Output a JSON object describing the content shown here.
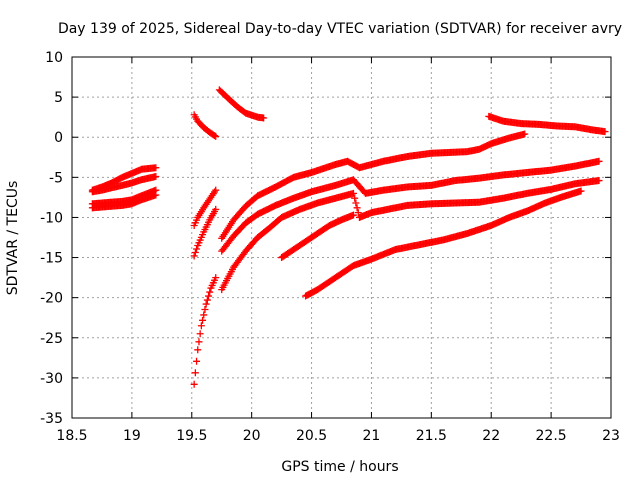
{
  "chart_data": {
    "type": "scatter",
    "title": "Day 139 of 2025, Sidereal Day-to-day VTEC variation (SDTVAR) for receiver avry",
    "xlabel": "GPS time / hours",
    "ylabel": "SDTVAR / TECUs",
    "xlim": [
      18.5,
      23.0
    ],
    "ylim": [
      -35,
      10
    ],
    "xticks": [
      18.5,
      19,
      19.5,
      20,
      20.5,
      21,
      21.5,
      22,
      22.5,
      23
    ],
    "yticks": [
      -35,
      -30,
      -25,
      -20,
      -15,
      -10,
      -5,
      0,
      5,
      10
    ],
    "xtick_labels": [
      "18.5",
      "19",
      "19.5",
      "20",
      "20.5",
      "21",
      "21.5",
      "22",
      "22.5",
      "23"
    ],
    "ytick_labels": [
      "-35",
      "-30",
      "-25",
      "-20",
      "-15",
      "-10",
      "-5",
      "0",
      "5",
      "10"
    ],
    "grid": true,
    "marker": "plus",
    "color": "#ff0000",
    "series": [
      {
        "name": "s1",
        "points": [
          [
            18.67,
            -6.6
          ],
          [
            18.75,
            -6.2
          ],
          [
            18.83,
            -5.7
          ],
          [
            18.92,
            -5.0
          ],
          [
            19.0,
            -4.5
          ],
          [
            19.08,
            -4.0
          ],
          [
            19.2,
            -3.8
          ]
        ]
      },
      {
        "name": "s2",
        "points": [
          [
            18.67,
            -6.8
          ],
          [
            18.75,
            -6.6
          ],
          [
            18.83,
            -6.3
          ],
          [
            18.92,
            -6.0
          ],
          [
            19.0,
            -5.7
          ],
          [
            19.08,
            -5.3
          ],
          [
            19.2,
            -4.9
          ]
        ]
      },
      {
        "name": "s3",
        "points": [
          [
            18.67,
            -8.3
          ],
          [
            18.75,
            -8.2
          ],
          [
            18.83,
            -8.1
          ],
          [
            18.92,
            -8.0
          ],
          [
            19.0,
            -7.8
          ],
          [
            19.08,
            -7.3
          ],
          [
            19.2,
            -6.6
          ]
        ]
      },
      {
        "name": "s4",
        "points": [
          [
            18.67,
            -8.8
          ],
          [
            18.75,
            -8.7
          ],
          [
            18.83,
            -8.6
          ],
          [
            18.92,
            -8.5
          ],
          [
            19.0,
            -8.3
          ],
          [
            19.08,
            -7.8
          ],
          [
            19.2,
            -7.2
          ]
        ]
      },
      {
        "name": "s5",
        "points": [
          [
            19.52,
            2.8
          ],
          [
            19.55,
            2.0
          ],
          [
            19.6,
            1.2
          ],
          [
            19.65,
            0.6
          ],
          [
            19.7,
            0.1
          ]
        ]
      },
      {
        "name": "s6",
        "points": [
          [
            19.52,
            -11.0
          ],
          [
            19.55,
            -10.0
          ],
          [
            19.6,
            -8.8
          ],
          [
            19.65,
            -7.7
          ],
          [
            19.7,
            -6.6
          ]
        ]
      },
      {
        "name": "s7",
        "points": [
          [
            19.52,
            -14.8
          ],
          [
            19.55,
            -13.5
          ],
          [
            19.6,
            -11.8
          ],
          [
            19.65,
            -10.3
          ],
          [
            19.7,
            -9.0
          ]
        ]
      },
      {
        "name": "s8",
        "points": [
          [
            19.52,
            -30.8
          ],
          [
            19.55,
            -26.5
          ],
          [
            19.58,
            -23.5
          ],
          [
            19.62,
            -20.8
          ],
          [
            19.66,
            -18.8
          ],
          [
            19.7,
            -17.5
          ]
        ]
      },
      {
        "name": "s9",
        "points": [
          [
            19.73,
            5.9
          ],
          [
            19.8,
            4.9
          ],
          [
            19.88,
            3.8
          ],
          [
            19.95,
            3.0
          ],
          [
            20.05,
            2.5
          ],
          [
            20.1,
            2.4
          ]
        ]
      },
      {
        "name": "s10",
        "points": [
          [
            19.75,
            -12.6
          ],
          [
            19.85,
            -10.3
          ],
          [
            19.95,
            -8.6
          ],
          [
            20.05,
            -7.3
          ],
          [
            20.2,
            -6.2
          ],
          [
            20.35,
            -5.0
          ],
          [
            20.5,
            -4.4
          ],
          [
            20.7,
            -3.4
          ],
          [
            20.8,
            -3.0
          ],
          [
            20.9,
            -3.8
          ],
          [
            21.1,
            -3.0
          ],
          [
            21.3,
            -2.4
          ],
          [
            21.5,
            -2.0
          ],
          [
            21.8,
            -1.8
          ],
          [
            21.9,
            -1.5
          ],
          [
            22.0,
            -0.8
          ],
          [
            22.15,
            -0.1
          ],
          [
            22.28,
            0.4
          ]
        ]
      },
      {
        "name": "s11",
        "points": [
          [
            19.75,
            -14.2
          ],
          [
            19.85,
            -12.3
          ],
          [
            19.95,
            -10.7
          ],
          [
            20.05,
            -9.6
          ],
          [
            20.2,
            -8.5
          ],
          [
            20.35,
            -7.6
          ],
          [
            20.5,
            -6.8
          ],
          [
            20.7,
            -6.0
          ],
          [
            20.85,
            -5.3
          ],
          [
            20.95,
            -7.0
          ],
          [
            21.1,
            -6.6
          ],
          [
            21.3,
            -6.2
          ],
          [
            21.5,
            -6.0
          ],
          [
            21.7,
            -5.4
          ],
          [
            21.9,
            -5.1
          ],
          [
            22.1,
            -4.7
          ],
          [
            22.3,
            -4.4
          ],
          [
            22.5,
            -4.1
          ],
          [
            22.7,
            -3.6
          ],
          [
            22.9,
            -3.0
          ]
        ]
      },
      {
        "name": "s12",
        "points": [
          [
            19.75,
            -19.0
          ],
          [
            19.85,
            -16.2
          ],
          [
            19.95,
            -14.2
          ],
          [
            20.05,
            -12.5
          ],
          [
            20.15,
            -11.3
          ],
          [
            20.25,
            -10.0
          ],
          [
            20.4,
            -9.0
          ],
          [
            20.55,
            -8.2
          ],
          [
            20.7,
            -7.6
          ],
          [
            20.85,
            -7.0
          ],
          [
            20.9,
            -10.0
          ],
          [
            21.0,
            -9.4
          ],
          [
            21.2,
            -8.8
          ],
          [
            21.3,
            -8.5
          ],
          [
            21.5,
            -8.3
          ],
          [
            21.7,
            -8.2
          ],
          [
            21.9,
            -8.1
          ],
          [
            22.1,
            -7.6
          ],
          [
            22.3,
            -7.0
          ],
          [
            22.5,
            -6.5
          ],
          [
            22.7,
            -5.8
          ],
          [
            22.9,
            -5.4
          ]
        ]
      },
      {
        "name": "s13",
        "points": [
          [
            20.25,
            -15.0
          ],
          [
            20.35,
            -14.0
          ],
          [
            20.45,
            -13.0
          ],
          [
            20.55,
            -12.0
          ],
          [
            20.65,
            -11.0
          ],
          [
            20.75,
            -10.3
          ],
          [
            20.85,
            -9.7
          ]
        ]
      },
      {
        "name": "s14",
        "points": [
          [
            20.45,
            -19.8
          ],
          [
            20.55,
            -19.0
          ],
          [
            20.65,
            -18.0
          ],
          [
            20.75,
            -17.0
          ],
          [
            20.85,
            -16.0
          ],
          [
            21.0,
            -15.2
          ],
          [
            21.2,
            -14.0
          ],
          [
            21.4,
            -13.4
          ],
          [
            21.6,
            -12.8
          ],
          [
            21.8,
            -12.0
          ],
          [
            22.0,
            -11.0
          ],
          [
            22.15,
            -10.0
          ],
          [
            22.3,
            -9.2
          ],
          [
            22.45,
            -8.2
          ],
          [
            22.6,
            -7.4
          ],
          [
            22.75,
            -6.7
          ]
        ]
      },
      {
        "name": "s15",
        "points": [
          [
            21.98,
            2.6
          ],
          [
            22.1,
            2.0
          ],
          [
            22.25,
            1.7
          ],
          [
            22.4,
            1.6
          ],
          [
            22.55,
            1.4
          ],
          [
            22.7,
            1.3
          ],
          [
            22.85,
            0.9
          ],
          [
            22.95,
            0.7
          ]
        ]
      }
    ]
  }
}
